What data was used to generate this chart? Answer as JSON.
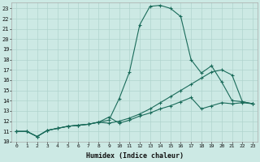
{
  "xlabel": "Humidex (Indice chaleur)",
  "ylabel": "",
  "bg_color": "#cce9e4",
  "grid_color": "#b0d4ce",
  "line_color": "#1a6b5a",
  "xlim": [
    -0.5,
    23.5
  ],
  "ylim": [
    10.0,
    23.6
  ],
  "xticks": [
    0,
    1,
    2,
    3,
    4,
    5,
    6,
    7,
    8,
    9,
    10,
    11,
    12,
    13,
    14,
    15,
    16,
    17,
    18,
    19,
    20,
    21,
    22,
    23
  ],
  "yticks": [
    10,
    11,
    12,
    13,
    14,
    15,
    16,
    17,
    18,
    19,
    20,
    21,
    22,
    23
  ],
  "line1_x": [
    0,
    1,
    2,
    3,
    4,
    5,
    6,
    7,
    8,
    9,
    10,
    11,
    12,
    13,
    14,
    15,
    16,
    17,
    18,
    19,
    20,
    21,
    22,
    23
  ],
  "line1_y": [
    11.0,
    11.0,
    10.5,
    11.1,
    11.3,
    11.5,
    11.6,
    11.7,
    11.9,
    12.1,
    14.2,
    16.8,
    21.4,
    23.2,
    23.3,
    23.0,
    22.2,
    18.0,
    16.7,
    17.4,
    15.8,
    14.0,
    13.9,
    13.7
  ],
  "line2_x": [
    0,
    1,
    2,
    3,
    4,
    5,
    6,
    7,
    8,
    9,
    10,
    11,
    12,
    13,
    14,
    15,
    16,
    17,
    18,
    19,
    20,
    21,
    22,
    23
  ],
  "line2_y": [
    11.0,
    11.0,
    10.5,
    11.1,
    11.3,
    11.5,
    11.6,
    11.7,
    11.9,
    11.8,
    12.0,
    12.3,
    12.7,
    13.2,
    13.8,
    14.4,
    15.0,
    15.6,
    16.2,
    16.8,
    17.0,
    16.5,
    13.9,
    13.7
  ],
  "line3_x": [
    0,
    1,
    2,
    3,
    4,
    5,
    6,
    7,
    8,
    9,
    10,
    11,
    12,
    13,
    14,
    15,
    16,
    17,
    18,
    19,
    20,
    21,
    22,
    23
  ],
  "line3_y": [
    11.0,
    11.0,
    10.5,
    11.1,
    11.3,
    11.5,
    11.6,
    11.7,
    11.9,
    12.4,
    11.8,
    12.1,
    12.5,
    12.8,
    13.2,
    13.5,
    13.9,
    14.3,
    13.2,
    13.5,
    13.8,
    13.7,
    13.8,
    13.7
  ]
}
